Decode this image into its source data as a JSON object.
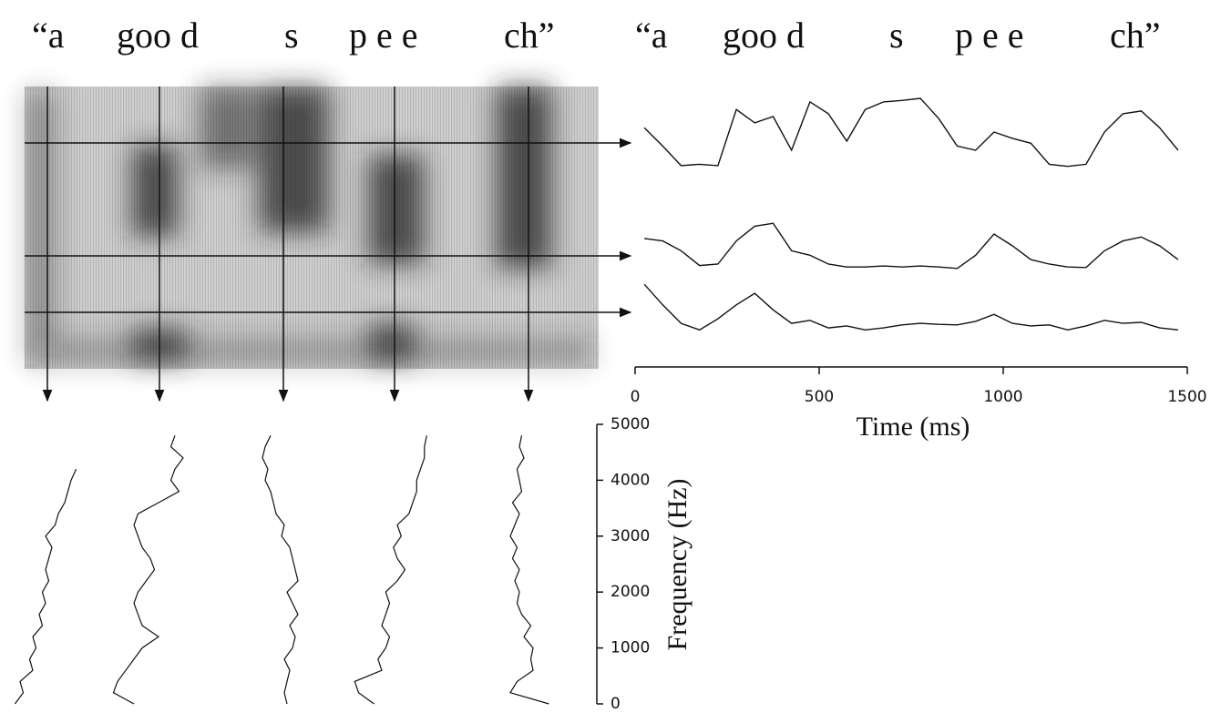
{
  "phonemes_left": [
    "“a",
    "goo d",
    "s",
    "p e e",
    "ch”"
  ],
  "phonemes_right": [
    "“a",
    "goo d",
    "s",
    "p e e",
    "ch”"
  ],
  "chart_data": [
    {
      "type": "line",
      "xlabel": "Time (ms)",
      "xlim": [
        0,
        1500
      ],
      "xticks": [
        0,
        500,
        1000,
        1500
      ],
      "x": [
        25,
        75,
        125,
        175,
        225,
        275,
        325,
        375,
        425,
        475,
        525,
        575,
        625,
        675,
        725,
        775,
        825,
        875,
        925,
        975,
        1025,
        1075,
        1125,
        1175,
        1225,
        1275,
        1325,
        1375,
        1425,
        1475
      ],
      "series": [
        {
          "color": "#111",
          "values": [
            0.58,
            0.32,
            0.04,
            0.06,
            0.04,
            0.84,
            0.65,
            0.74,
            0.26,
            0.95,
            0.78,
            0.39,
            0.84,
            0.95,
            0.97,
            1.0,
            0.71,
            0.32,
            0.26,
            0.52,
            0.43,
            0.36,
            0.06,
            0.03,
            0.06,
            0.52,
            0.78,
            0.82,
            0.58,
            0.26
          ]
        },
        {
          "color": "#111",
          "values": [
            0.65,
            0.6,
            0.4,
            0.1,
            0.13,
            0.6,
            0.9,
            0.96,
            0.4,
            0.31,
            0.13,
            0.07,
            0.07,
            0.09,
            0.07,
            0.09,
            0.07,
            0.04,
            0.31,
            0.74,
            0.5,
            0.22,
            0.13,
            0.07,
            0.06,
            0.4,
            0.6,
            0.68,
            0.5,
            0.22
          ]
        },
        {
          "color": "#111",
          "values": [
            0.96,
            0.55,
            0.18,
            0.05,
            0.27,
            0.55,
            0.78,
            0.45,
            0.18,
            0.24,
            0.09,
            0.13,
            0.05,
            0.09,
            0.15,
            0.18,
            0.16,
            0.15,
            0.22,
            0.36,
            0.18,
            0.13,
            0.15,
            0.05,
            0.13,
            0.24,
            0.18,
            0.2,
            0.09,
            0.05
          ]
        }
      ]
    },
    {
      "type": "spectrum",
      "ylabel": "Frequency (Hz)",
      "ylim": [
        0,
        5000
      ],
      "yticks": [
        0,
        1000,
        2000,
        3000,
        4000,
        5000
      ],
      "x": [
        0,
        200,
        400,
        600,
        800,
        1000,
        1200,
        1400,
        1600,
        1800,
        2000,
        2200,
        2400,
        2600,
        2800,
        3000,
        3200,
        3400,
        3600,
        3800,
        4000,
        4200,
        4400,
        4600,
        4800
      ],
      "series": [
        {
          "color": "#111",
          "values": [
            0.02,
            0.15,
            0.1,
            0.3,
            0.25,
            0.35,
            0.3,
            0.45,
            0.4,
            0.5,
            0.45,
            0.55,
            0.5,
            0.55,
            0.6,
            0.5,
            0.65,
            0.7,
            0.8,
            0.85,
            0.9,
            0.98,
            null,
            null,
            null
          ]
        },
        {
          "color": "#111",
          "values": [
            0.3,
            0.05,
            0.1,
            0.2,
            0.3,
            0.4,
            0.6,
            0.4,
            0.35,
            0.3,
            0.35,
            0.45,
            0.55,
            0.5,
            0.4,
            0.35,
            0.3,
            0.35,
            0.6,
            0.85,
            0.75,
            0.8,
            0.9,
            0.75,
            0.8
          ]
        },
        {
          "color": "#111",
          "values": [
            0.5,
            0.45,
            0.5,
            0.55,
            0.45,
            0.6,
            0.65,
            0.55,
            0.7,
            0.6,
            0.5,
            0.7,
            0.65,
            0.6,
            0.55,
            0.4,
            0.45,
            0.3,
            0.25,
            0.2,
            0.1,
            0.15,
            0.05,
            0.1,
            0.2
          ]
        },
        {
          "color": "#111",
          "values": [
            0.3,
            0.1,
            0.05,
            0.4,
            0.35,
            0.45,
            0.5,
            0.4,
            0.45,
            0.5,
            0.45,
            0.6,
            0.7,
            0.6,
            0.55,
            0.65,
            0.6,
            0.75,
            0.8,
            0.85,
            0.85,
            0.9,
            0.95,
            0.95,
            0.98
          ]
        },
        {
          "color": "#111",
          "values": [
            0.95,
            0.1,
            0.25,
            0.6,
            0.55,
            0.6,
            0.4,
            0.55,
            0.35,
            0.25,
            0.3,
            0.2,
            0.3,
            0.15,
            0.25,
            0.1,
            0.2,
            0.3,
            0.15,
            0.35,
            0.3,
            0.25,
            0.4,
            0.3,
            0.35
          ]
        }
      ]
    }
  ]
}
